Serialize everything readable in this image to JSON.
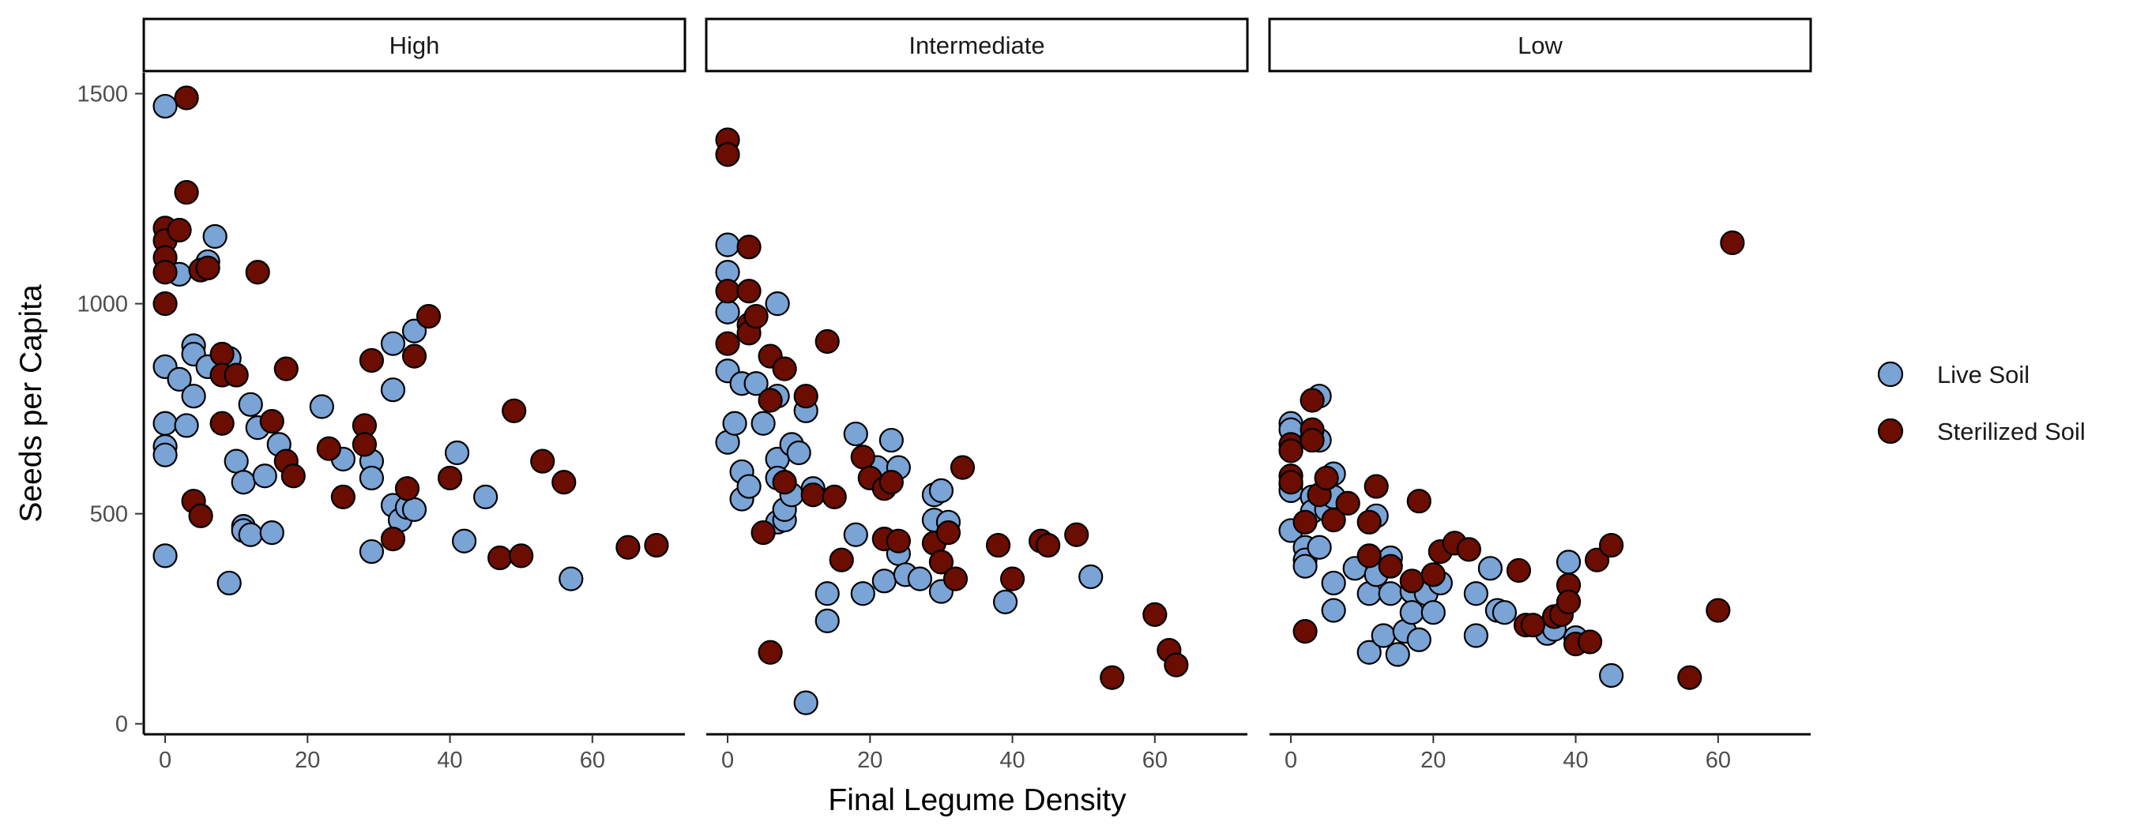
{
  "chart_data": {
    "type": "scatter",
    "title": "",
    "xlabel": "Final Legume Density",
    "ylabel": "Seeds per Capita",
    "xlim": [
      -3,
      73
    ],
    "ylim": [
      -25,
      1550
    ],
    "xticks": [
      0,
      20,
      40,
      60
    ],
    "yticks": [
      0,
      500,
      1000,
      1500
    ],
    "grid": false,
    "legend_position": "right",
    "colors": {
      "Live Soil": "#7aa3d6",
      "Sterilized Soil": "#6b0d00"
    },
    "facets": [
      {
        "label": "High",
        "series": [
          {
            "name": "Live Soil",
            "points": [
              [
                0,
                1470
              ],
              [
                0,
                850
              ],
              [
                0,
                715
              ],
              [
                0,
                660
              ],
              [
                0,
                640
              ],
              [
                0,
                400
              ],
              [
                2,
                1070
              ],
              [
                2,
                820
              ],
              [
                3,
                710
              ],
              [
                4,
                900
              ],
              [
                4,
                880
              ],
              [
                4,
                780
              ],
              [
                6,
                1100
              ],
              [
                6,
                850
              ],
              [
                7,
                1160
              ],
              [
                9,
                870
              ],
              [
                9,
                335
              ],
              [
                10,
                625
              ],
              [
                11,
                575
              ],
              [
                11,
                470
              ],
              [
                11,
                460
              ],
              [
                12,
                760
              ],
              [
                12,
                450
              ],
              [
                13,
                705
              ],
              [
                14,
                590
              ],
              [
                15,
                455
              ],
              [
                16,
                665
              ],
              [
                22,
                755
              ],
              [
                25,
                630
              ],
              [
                29,
                625
              ],
              [
                29,
                585
              ],
              [
                29,
                410
              ],
              [
                32,
                905
              ],
              [
                32,
                795
              ],
              [
                32,
                520
              ],
              [
                33,
                485
              ],
              [
                34,
                515
              ],
              [
                35,
                935
              ],
              [
                35,
                510
              ],
              [
                41,
                645
              ],
              [
                42,
                435
              ],
              [
                45,
                540
              ],
              [
                57,
                345
              ]
            ]
          },
          {
            "name": "Sterilized Soil",
            "points": [
              [
                3,
                1490
              ],
              [
                3,
                1265
              ],
              [
                0,
                1180
              ],
              [
                0,
                1150
              ],
              [
                0,
                1110
              ],
              [
                0,
                1075
              ],
              [
                0,
                1000
              ],
              [
                2,
                1175
              ],
              [
                5,
                1080
              ],
              [
                6,
                1085
              ],
              [
                8,
                880
              ],
              [
                8,
                830
              ],
              [
                8,
                715
              ],
              [
                10,
                830
              ],
              [
                13,
                1075
              ],
              [
                15,
                720
              ],
              [
                17,
                845
              ],
              [
                17,
                625
              ],
              [
                18,
                590
              ],
              [
                4,
                530
              ],
              [
                5,
                495
              ],
              [
                23,
                655
              ],
              [
                25,
                540
              ],
              [
                28,
                710
              ],
              [
                28,
                665
              ],
              [
                29,
                865
              ],
              [
                32,
                440
              ],
              [
                34,
                560
              ],
              [
                35,
                875
              ],
              [
                37,
                970
              ],
              [
                40,
                585
              ],
              [
                47,
                395
              ],
              [
                49,
                745
              ],
              [
                50,
                400
              ],
              [
                53,
                625
              ],
              [
                56,
                575
              ],
              [
                65,
                420
              ],
              [
                69,
                425
              ]
            ]
          }
        ]
      },
      {
        "label": "Intermediate",
        "series": [
          {
            "name": "Live Soil",
            "points": [
              [
                0,
                1140
              ],
              [
                0,
                1075
              ],
              [
                0,
                980
              ],
              [
                0,
                840
              ],
              [
                0,
                670
              ],
              [
                1,
                715
              ],
              [
                2,
                810
              ],
              [
                2,
                600
              ],
              [
                2,
                535
              ],
              [
                3,
                565
              ],
              [
                4,
                810
              ],
              [
                5,
                715
              ],
              [
                7,
                1000
              ],
              [
                7,
                780
              ],
              [
                7,
                630
              ],
              [
                7,
                585
              ],
              [
                7,
                480
              ],
              [
                8,
                485
              ],
              [
                8,
                510
              ],
              [
                9,
                665
              ],
              [
                9,
                545
              ],
              [
                10,
                645
              ],
              [
                11,
                745
              ],
              [
                12,
                560
              ],
              [
                14,
                310
              ],
              [
                14,
                245
              ],
              [
                18,
                690
              ],
              [
                18,
                450
              ],
              [
                19,
                310
              ],
              [
                21,
                610
              ],
              [
                22,
                340
              ],
              [
                23,
                675
              ],
              [
                24,
                610
              ],
              [
                24,
                405
              ],
              [
                25,
                355
              ],
              [
                27,
                345
              ],
              [
                29,
                545
              ],
              [
                29,
                485
              ],
              [
                30,
                555
              ],
              [
                30,
                315
              ],
              [
                31,
                480
              ],
              [
                39,
                290
              ],
              [
                51,
                350
              ],
              [
                11,
                50
              ]
            ]
          },
          {
            "name": "Sterilized Soil",
            "points": [
              [
                0,
                1390
              ],
              [
                0,
                1355
              ],
              [
                0,
                1030
              ],
              [
                0,
                905
              ],
              [
                3,
                1135
              ],
              [
                3,
                1030
              ],
              [
                3,
                950
              ],
              [
                3,
                930
              ],
              [
                4,
                970
              ],
              [
                6,
                875
              ],
              [
                6,
                770
              ],
              [
                5,
                455
              ],
              [
                8,
                845
              ],
              [
                8,
                575
              ],
              [
                11,
                780
              ],
              [
                12,
                545
              ],
              [
                14,
                910
              ],
              [
                15,
                540
              ],
              [
                16,
                390
              ],
              [
                19,
                635
              ],
              [
                20,
                585
              ],
              [
                22,
                560
              ],
              [
                22,
                440
              ],
              [
                23,
                575
              ],
              [
                24,
                435
              ],
              [
                29,
                430
              ],
              [
                30,
                385
              ],
              [
                31,
                455
              ],
              [
                32,
                345
              ],
              [
                33,
                610
              ],
              [
                38,
                425
              ],
              [
                40,
                345
              ],
              [
                44,
                435
              ],
              [
                45,
                425
              ],
              [
                49,
                450
              ],
              [
                54,
                110
              ],
              [
                60,
                260
              ],
              [
                62,
                175
              ],
              [
                63,
                140
              ],
              [
                6,
                170
              ]
            ]
          }
        ]
      },
      {
        "label": "Low",
        "series": [
          {
            "name": "Live Soil",
            "points": [
              [
                0,
                715
              ],
              [
                0,
                700
              ],
              [
                0,
                570
              ],
              [
                0,
                555
              ],
              [
                0,
                460
              ],
              [
                2,
                420
              ],
              [
                2,
                390
              ],
              [
                2,
                375
              ],
              [
                3,
                540
              ],
              [
                3,
                505
              ],
              [
                4,
                780
              ],
              [
                4,
                675
              ],
              [
                4,
                420
              ],
              [
                5,
                510
              ],
              [
                6,
                595
              ],
              [
                6,
                540
              ],
              [
                6,
                335
              ],
              [
                6,
                270
              ],
              [
                9,
                370
              ],
              [
                11,
                310
              ],
              [
                11,
                170
              ],
              [
                12,
                495
              ],
              [
                12,
                385
              ],
              [
                12,
                355
              ],
              [
                13,
                210
              ],
              [
                14,
                395
              ],
              [
                14,
                310
              ],
              [
                15,
                165
              ],
              [
                16,
                220
              ],
              [
                17,
                315
              ],
              [
                17,
                265
              ],
              [
                18,
                200
              ],
              [
                19,
                310
              ],
              [
                20,
                265
              ],
              [
                21,
                335
              ],
              [
                26,
                310
              ],
              [
                26,
                210
              ],
              [
                28,
                370
              ],
              [
                29,
                270
              ],
              [
                30,
                265
              ],
              [
                36,
                215
              ],
              [
                37,
                225
              ],
              [
                39,
                385
              ],
              [
                40,
                205
              ],
              [
                45,
                115
              ]
            ]
          },
          {
            "name": "Sterilized Soil",
            "points": [
              [
                0,
                665
              ],
              [
                0,
                650
              ],
              [
                0,
                590
              ],
              [
                0,
                575
              ],
              [
                2,
                480
              ],
              [
                2,
                220
              ],
              [
                3,
                770
              ],
              [
                3,
                700
              ],
              [
                3,
                675
              ],
              [
                4,
                545
              ],
              [
                5,
                585
              ],
              [
                6,
                485
              ],
              [
                8,
                525
              ],
              [
                11,
                480
              ],
              [
                11,
                400
              ],
              [
                12,
                565
              ],
              [
                14,
                375
              ],
              [
                17,
                340
              ],
              [
                18,
                530
              ],
              [
                20,
                355
              ],
              [
                21,
                410
              ],
              [
                23,
                430
              ],
              [
                25,
                415
              ],
              [
                32,
                365
              ],
              [
                33,
                235
              ],
              [
                34,
                235
              ],
              [
                37,
                255
              ],
              [
                38,
                260
              ],
              [
                39,
                330
              ],
              [
                39,
                290
              ],
              [
                40,
                190
              ],
              [
                42,
                195
              ],
              [
                43,
                390
              ],
              [
                45,
                425
              ],
              [
                56,
                110
              ],
              [
                60,
                270
              ],
              [
                62,
                1145
              ]
            ]
          }
        ]
      }
    ]
  }
}
